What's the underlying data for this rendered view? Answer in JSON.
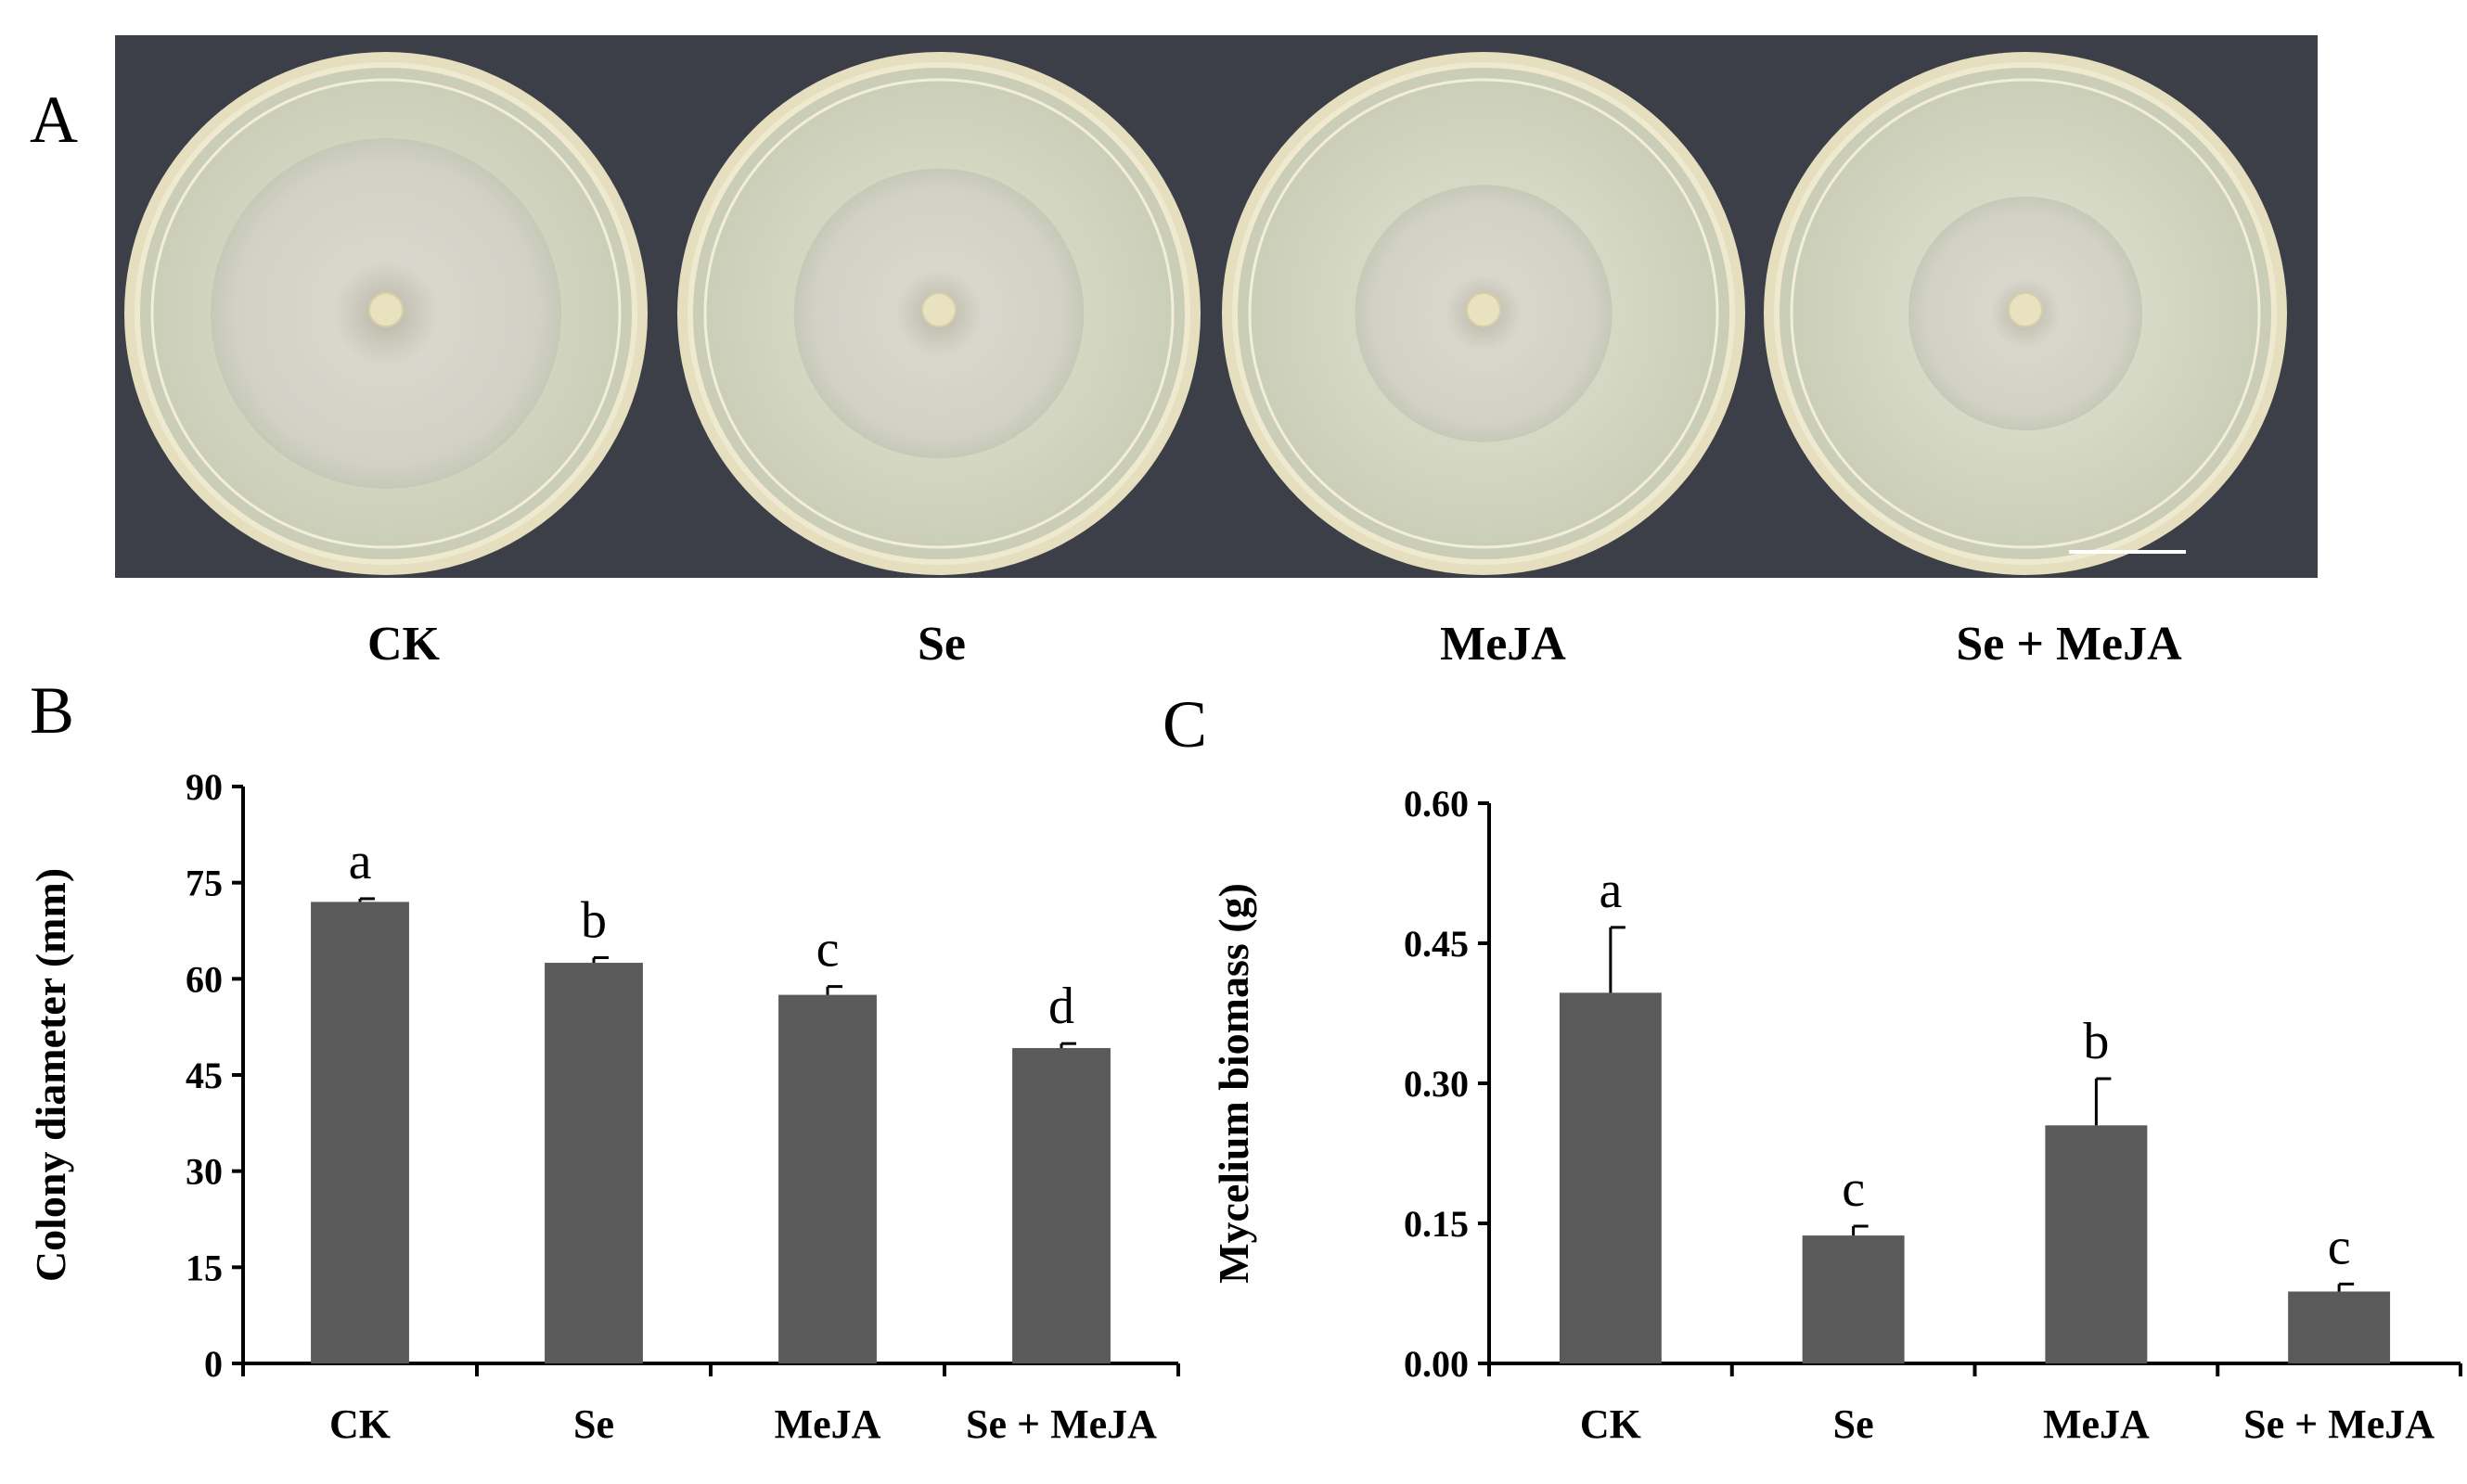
{
  "figure": {
    "panel_a": "A",
    "panel_b": "B",
    "panel_c": "C",
    "plate_labels": [
      "CK",
      "Se",
      "MeJA",
      "Se + MeJA"
    ]
  },
  "colors": {
    "bar": "#5a5a5a",
    "axis": "#000000",
    "photo_background": "#3d3f48",
    "agar": "#d8d9c6",
    "mycelium": "#cfcfc4",
    "plate_rim": "#e6dfbf"
  },
  "plates": [
    {
      "label": "CK",
      "colony_fraction": 0.75
    },
    {
      "label": "Se",
      "colony_fraction": 0.62
    },
    {
      "label": "MeJA",
      "colony_fraction": 0.55
    },
    {
      "label": "Se + MeJA",
      "colony_fraction": 0.5
    }
  ],
  "chart_data": [
    {
      "type": "bar",
      "panel": "B",
      "categories": [
        "CK",
        "Se",
        "MeJA",
        "Se + MeJA"
      ],
      "values": [
        72,
        62.5,
        57.5,
        49.2
      ],
      "errors": [
        0.5,
        0.8,
        1.3,
        0.7
      ],
      "significance": [
        "a",
        "b",
        "c",
        "d"
      ],
      "ylabel": "Colony diameter (mm)",
      "xlabel": "",
      "ylim": [
        0,
        90
      ],
      "yticks": [
        "0",
        "15",
        "30",
        "45",
        "60",
        "75",
        "90"
      ],
      "grid": false
    },
    {
      "type": "bar",
      "panel": "C",
      "categories": [
        "CK",
        "Se",
        "MeJA",
        "Se + MeJA"
      ],
      "values": [
        0.397,
        0.137,
        0.255,
        0.077
      ],
      "errors": [
        0.07,
        0.01,
        0.05,
        0.008
      ],
      "significance": [
        "a",
        "c",
        "b",
        "c"
      ],
      "ylabel": "Mycelium biomass (g)",
      "xlabel": "",
      "ylim": [
        0,
        0.6
      ],
      "yticks": [
        "0.00",
        "0.15",
        "0.30",
        "0.45",
        "0.60"
      ],
      "grid": false
    }
  ]
}
